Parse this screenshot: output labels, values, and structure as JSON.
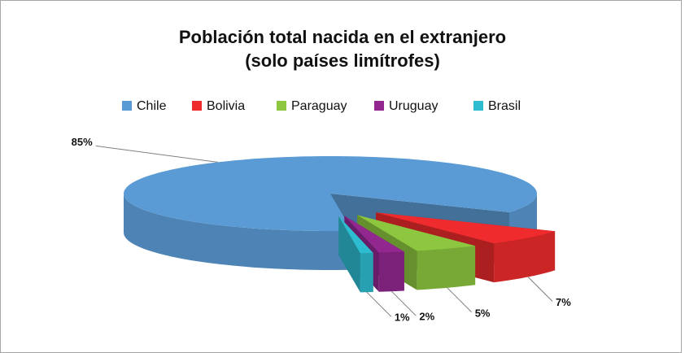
{
  "chart_data": {
    "type": "pie",
    "title": [
      "Población total nacida en el extranjero",
      "(solo países limítrofes)"
    ],
    "categories": [
      "Chile",
      "Bolivia",
      "Paraguay",
      "Uruguay",
      "Brasil"
    ],
    "values": [
      85,
      7,
      5,
      2,
      1
    ],
    "value_labels": [
      "85%",
      "7%",
      "5%",
      "2%",
      "1%"
    ],
    "colors": [
      "#5b9bd5",
      "#ef2b2d",
      "#8dc63f",
      "#92278f",
      "#2ebcd0"
    ],
    "legend": "top"
  }
}
